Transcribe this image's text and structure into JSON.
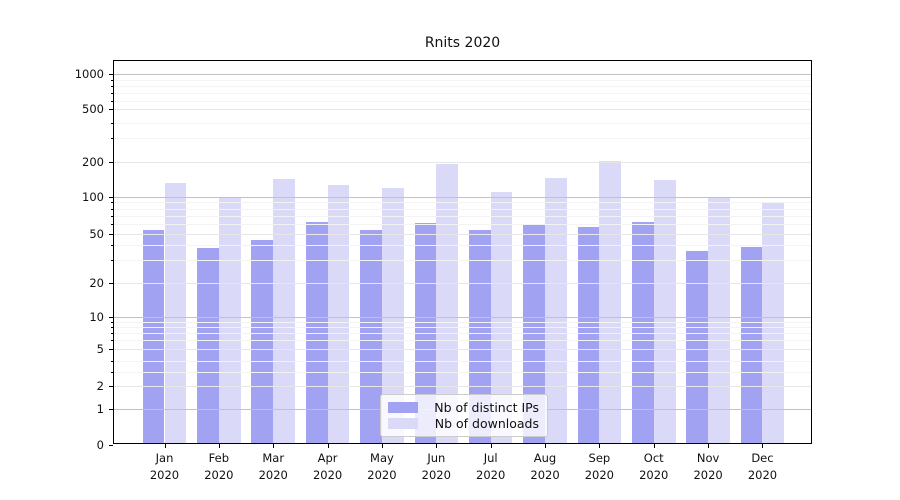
{
  "chart_data": {
    "type": "bar",
    "title": "Rnits 2020",
    "categories": [
      "Jan 2020",
      "Feb 2020",
      "Mar 2020",
      "Apr 2020",
      "May 2020",
      "Jun 2020",
      "Jul 2020",
      "Aug 2020",
      "Sep 2020",
      "Oct 2020",
      "Nov 2020",
      "Dec 2020"
    ],
    "series": [
      {
        "name": "Nb of distinct IPs",
        "color": "#a2a2f2",
        "values": [
          51,
          36,
          42,
          60,
          51,
          59,
          51,
          57,
          54,
          60,
          34,
          37
        ]
      },
      {
        "name": "Nb of downloads",
        "color": "#dadaf8",
        "values": [
          125,
          97,
          135,
          120,
          113,
          178,
          106,
          138,
          188,
          132,
          97,
          86
        ]
      }
    ],
    "xlabel": "",
    "ylabel": "",
    "yscale": "log above 1, linear 0-1",
    "yticks": [
      0,
      1,
      2,
      5,
      10,
      20,
      50,
      100,
      200,
      500,
      1000
    ],
    "ylim": [
      0,
      1300
    ],
    "grid": "on",
    "legend": {
      "position": "lower-center",
      "entries": [
        "Nb of distinct IPs",
        "Nb of downloads"
      ]
    }
  },
  "colors": {
    "grid_major": "#c2c2c2",
    "grid_mid": "#e7e7e7",
    "grid_minor": "#f3f3f3",
    "axis": "#000000",
    "text": "#111111",
    "background": "#ffffff"
  }
}
